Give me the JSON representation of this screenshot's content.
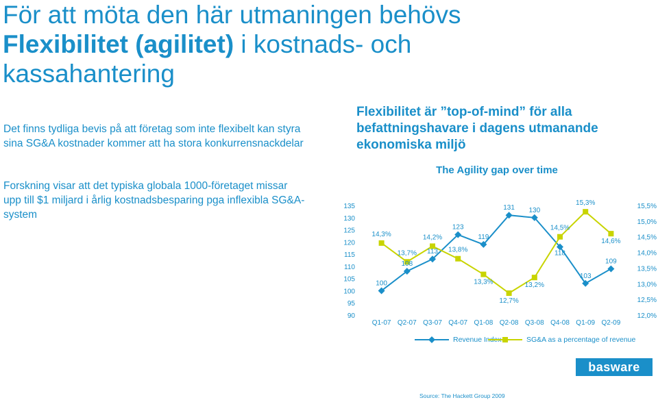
{
  "slide": {
    "title_line1": "För att möta den här utmaningen behövs",
    "title_bold": "Flexibilitet (agilitet)",
    "title_rest": " i kostnads- och",
    "title_line3": "kassahantering",
    "para1": "Det finns tydliga bevis på att företag som inte flexibelt kan styra sina SG&A kostnader kommer att ha stora konkurrensnackdelar",
    "para2": "Forskning visar att det typiska globala 1000-företaget missar upp till $1 miljard i årlig kostnadsbesparing pga inflexibla SG&A-system",
    "chart_heading": "Flexibilitet är ”top-of-mind” för alla befattningshavare i dagens utmanande ekonomiska miljö",
    "logo_text": "basware",
    "source": "Source: The Hackett Group 2009"
  },
  "chart_data": {
    "type": "line",
    "title": "The Agility gap over time",
    "categories": [
      "Q1-07",
      "Q2-07",
      "Q3-07",
      "Q4-07",
      "Q1-08",
      "Q2-08",
      "Q3-08",
      "Q4-08",
      "Q1-09",
      "Q2-09"
    ],
    "series": [
      {
        "name": "Revenue Index",
        "axis": "left",
        "color": "#1a8fc9",
        "values": [
          100,
          108,
          113,
          123,
          119,
          131,
          130,
          118,
          103,
          109
        ],
        "labels": [
          "100",
          "108",
          "113",
          "123",
          "119",
          "131",
          "130",
          "118",
          "103",
          "109"
        ]
      },
      {
        "name": "SG&A as a percentage of revenue",
        "axis": "right",
        "color": "#c8d400",
        "values": [
          14.3,
          13.7,
          14.2,
          13.8,
          13.3,
          12.7,
          13.2,
          14.5,
          15.3,
          14.6
        ],
        "labels": [
          "14,3%",
          "13,7%",
          "14,2%",
          "13,8%",
          "13,3%",
          "12,7%",
          "13,2%",
          "14,5%",
          "15,3%",
          "14,6%"
        ]
      }
    ],
    "y_left": {
      "ticks": [
        90,
        95,
        100,
        105,
        110,
        115,
        120,
        125,
        130,
        135
      ],
      "tick_labels": [
        "90",
        "95",
        "100",
        "105",
        "110",
        "115",
        "120",
        "125",
        "130",
        "135"
      ],
      "range": [
        90,
        135
      ]
    },
    "y_right": {
      "ticks": [
        12.0,
        12.5,
        13.0,
        13.5,
        14.0,
        14.5,
        15.0,
        15.5
      ],
      "tick_labels": [
        "12,0%",
        "12,5%",
        "13,0%",
        "13,5%",
        "14,0%",
        "14,5%",
        "15,0%",
        "15,5%"
      ],
      "range": [
        12.0,
        15.5
      ]
    },
    "grid": false,
    "legend_position": "bottom"
  }
}
